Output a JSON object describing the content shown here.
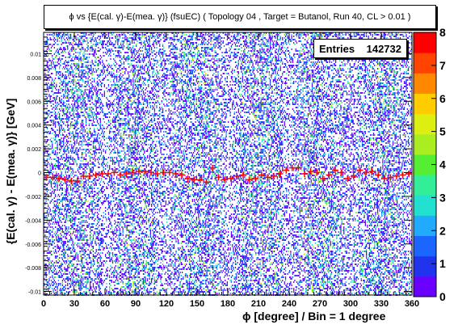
{
  "chart_data": {
    "type": "heatmap",
    "title": "ϕ vs {E(cal. γ)-E(mea. γ)} (fsuEC) ( Topology 04 , Target = Butanol, Run 40, CL > 0.01 )",
    "xlabel": "ϕ [degree] / Bin = 1 degree",
    "ylabel": "{E(cal. γ) - E(mea. γ)} [GeV]",
    "xlim": [
      0,
      360
    ],
    "ylim": [
      -0.0103,
      0.0118
    ],
    "x_ticks": [
      0,
      30,
      60,
      90,
      120,
      150,
      180,
      210,
      240,
      270,
      300,
      330,
      360
    ],
    "y_ticks": [
      -0.01,
      -0.008,
      -0.006,
      -0.004,
      -0.002,
      0,
      0.002,
      0.004,
      0.006,
      0.008,
      0.01
    ],
    "y_tick_labels": [
      "-0.01",
      "-0.008",
      "-0.006",
      "-0.004",
      "-0.002",
      "0",
      "0.002",
      "0.004",
      "0.006",
      "0.008",
      "0.01"
    ],
    "z_range": [
      0,
      8
    ],
    "z_ticks": [
      0,
      1,
      2,
      3,
      4,
      5,
      6,
      7,
      8
    ],
    "stats": {
      "label": "Entries",
      "value": "142732"
    },
    "profile_x": [
      3,
      9,
      15,
      21,
      27,
      33,
      39,
      45,
      51,
      57,
      63,
      69,
      75,
      81,
      87,
      93,
      99,
      105,
      111,
      117,
      123,
      129,
      135,
      141,
      147,
      153,
      159,
      165,
      171,
      177,
      183,
      189,
      195,
      201,
      207,
      213,
      219,
      225,
      231,
      237,
      243,
      249,
      255,
      261,
      267,
      273,
      279,
      285,
      291,
      297,
      303,
      309,
      315,
      321,
      327,
      333,
      339,
      345,
      351,
      357
    ],
    "profile_y": [
      -0.0004,
      -0.0004,
      -0.0005,
      -0.0006,
      -0.0007,
      -0.0007,
      -0.0003,
      -0.0003,
      -0.0002,
      -0.0001,
      -0.0001,
      0.0,
      -0.0002,
      -0.0001,
      0.0,
      0.0001,
      0.0001,
      0.0,
      -0.0001,
      0.0,
      0.0,
      -0.0001,
      -0.0002,
      -0.0005,
      -0.0006,
      -0.0006,
      -0.0008,
      0.0004,
      -0.0004,
      -0.0006,
      -0.0005,
      -0.0003,
      -0.0002,
      -0.0006,
      -0.0005,
      -0.0002,
      -0.0004,
      -0.0003,
      -0.0001,
      0.0002,
      0.0004,
      0.0004,
      -0.0001,
      0.0001,
      0.0,
      -0.0005,
      -0.0002,
      0.0002,
      0.0,
      -0.0005,
      -0.0003,
      0.0002,
      0.0,
      0.0001,
      -0.0002,
      -0.0005,
      -0.0004,
      -0.0003,
      -0.0002,
      -0.0001
    ],
    "colorscale": [
      "#6a00ff",
      "#2233ee",
      "#1a66ff",
      "#22aaff",
      "#22e0d0",
      "#33ee99",
      "#55ee33",
      "#aaee22",
      "#ddee11",
      "#ffcc00",
      "#ff8800",
      "#ff4400",
      "#ff0000"
    ],
    "colors": {
      "frame": "#000000",
      "profile": "#ff0000",
      "background": "#ffffff"
    }
  }
}
